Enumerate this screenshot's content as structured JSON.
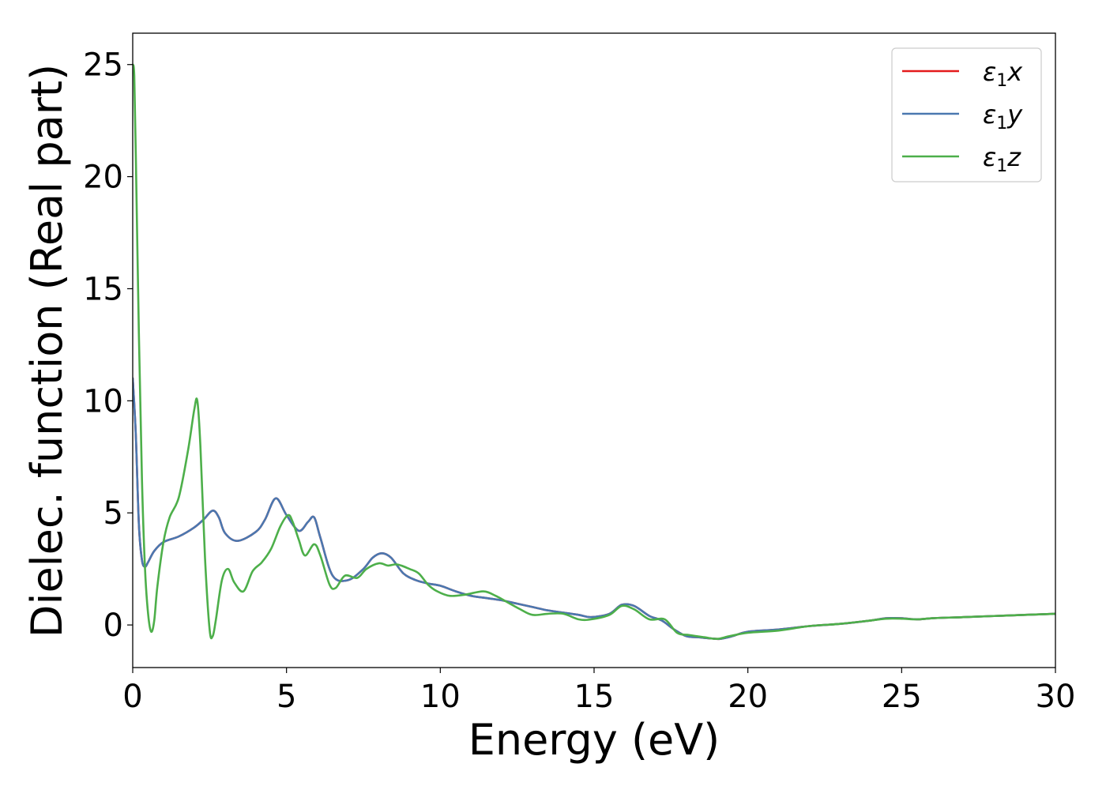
{
  "chart_data": {
    "type": "line",
    "title": "",
    "xlabel": "Energy (eV)",
    "ylabel": "Dielec. function (Real part)",
    "xlim": [
      0,
      30
    ],
    "ylim": [
      -1.9,
      26.4
    ],
    "xticks": [
      "0",
      "5",
      "10",
      "15",
      "20",
      "25",
      "30"
    ],
    "yticks": [
      "0",
      "5",
      "10",
      "15",
      "20",
      "25"
    ],
    "grid": false,
    "legend_position": "top-right",
    "series": [
      {
        "name": "ε1x",
        "name_base": "ε",
        "name_sub": "1",
        "name_suffix": "x",
        "color": "#e41a1c",
        "x": [
          0.0,
          0.1,
          0.2,
          0.3,
          0.4,
          0.5,
          0.7,
          1.0,
          1.5,
          2.0,
          2.3,
          2.6,
          2.8,
          3.0,
          3.4,
          4.0,
          4.3,
          4.65,
          5.0,
          5.4,
          5.7,
          5.9,
          6.1,
          6.5,
          7.0,
          7.5,
          7.8,
          8.1,
          8.4,
          8.8,
          9.2,
          9.6,
          10.0,
          10.5,
          11.0,
          11.5,
          12.0,
          12.5,
          13.0,
          13.5,
          14.0,
          14.5,
          14.9,
          15.5,
          15.9,
          16.3,
          16.8,
          17.2,
          17.6,
          18.0,
          18.4,
          18.8,
          19.1,
          19.5,
          20.0,
          21.0,
          22.0,
          23.0,
          24.0,
          24.5,
          25.0,
          25.5,
          26.0,
          27.0,
          28.0,
          29.0,
          30.0
        ],
        "y": [
          11.0,
          8.5,
          4.5,
          2.9,
          2.6,
          2.8,
          3.3,
          3.7,
          3.95,
          4.35,
          4.7,
          5.1,
          4.8,
          4.1,
          3.75,
          4.15,
          4.7,
          5.65,
          4.9,
          4.2,
          4.6,
          4.8,
          3.9,
          2.2,
          2.0,
          2.5,
          3.0,
          3.2,
          3.0,
          2.3,
          2.0,
          1.85,
          1.75,
          1.5,
          1.3,
          1.2,
          1.1,
          0.95,
          0.8,
          0.65,
          0.55,
          0.45,
          0.35,
          0.5,
          0.9,
          0.85,
          0.4,
          0.2,
          -0.2,
          -0.5,
          -0.55,
          -0.6,
          -0.62,
          -0.5,
          -0.3,
          -0.2,
          -0.05,
          0.05,
          0.2,
          0.3,
          0.3,
          0.25,
          0.3,
          0.35,
          0.4,
          0.45,
          0.5
        ]
      },
      {
        "name": "ε1y",
        "name_base": "ε",
        "name_sub": "1",
        "name_suffix": "y",
        "color": "#4a78b0",
        "x": [
          0.0,
          0.1,
          0.2,
          0.3,
          0.4,
          0.5,
          0.7,
          1.0,
          1.5,
          2.0,
          2.3,
          2.6,
          2.8,
          3.0,
          3.4,
          4.0,
          4.3,
          4.65,
          5.0,
          5.4,
          5.7,
          5.9,
          6.1,
          6.5,
          7.0,
          7.5,
          7.8,
          8.1,
          8.4,
          8.8,
          9.2,
          9.6,
          10.0,
          10.5,
          11.0,
          11.5,
          12.0,
          12.5,
          13.0,
          13.5,
          14.0,
          14.5,
          14.9,
          15.5,
          15.9,
          16.3,
          16.8,
          17.2,
          17.6,
          18.0,
          18.4,
          18.8,
          19.1,
          19.5,
          20.0,
          21.0,
          22.0,
          23.0,
          24.0,
          24.5,
          25.0,
          25.5,
          26.0,
          27.0,
          28.0,
          29.0,
          30.0
        ],
        "y": [
          11.0,
          8.5,
          4.5,
          2.9,
          2.6,
          2.8,
          3.3,
          3.7,
          3.95,
          4.35,
          4.7,
          5.1,
          4.8,
          4.1,
          3.75,
          4.15,
          4.7,
          5.65,
          4.9,
          4.2,
          4.6,
          4.8,
          3.9,
          2.2,
          2.0,
          2.5,
          3.0,
          3.2,
          3.0,
          2.3,
          2.0,
          1.85,
          1.75,
          1.5,
          1.3,
          1.2,
          1.1,
          0.95,
          0.8,
          0.65,
          0.55,
          0.45,
          0.35,
          0.5,
          0.9,
          0.85,
          0.4,
          0.2,
          -0.2,
          -0.5,
          -0.55,
          -0.6,
          -0.62,
          -0.5,
          -0.3,
          -0.2,
          -0.05,
          0.05,
          0.2,
          0.3,
          0.3,
          0.25,
          0.3,
          0.35,
          0.4,
          0.45,
          0.5
        ]
      },
      {
        "name": "ε1z",
        "name_base": "ε",
        "name_sub": "1",
        "name_suffix": "z",
        "color": "#4daf4a",
        "x": [
          0.0,
          0.05,
          0.1,
          0.2,
          0.3,
          0.4,
          0.5,
          0.6,
          0.7,
          0.8,
          1.0,
          1.2,
          1.5,
          1.8,
          2.0,
          2.1,
          2.2,
          2.35,
          2.5,
          2.6,
          2.7,
          2.9,
          3.1,
          3.3,
          3.6,
          3.9,
          4.2,
          4.5,
          4.8,
          5.05,
          5.2,
          5.4,
          5.6,
          5.9,
          6.1,
          6.4,
          6.6,
          6.9,
          7.3,
          7.6,
          8.0,
          8.3,
          8.6,
          9.0,
          9.3,
          9.6,
          9.9,
          10.3,
          10.8,
          11.4,
          11.8,
          12.2,
          12.6,
          13.0,
          13.5,
          14.0,
          14.5,
          14.9,
          15.5,
          15.9,
          16.3,
          16.8,
          17.3,
          17.7,
          18.1,
          18.6,
          19.0,
          19.4,
          20.0,
          21.0,
          22.0,
          23.0,
          24.0,
          24.5,
          25.0,
          25.5,
          26.0,
          27.0,
          28.0,
          29.0,
          30.0
        ],
        "y": [
          25.0,
          24.5,
          21.0,
          13.0,
          6.5,
          2.5,
          0.5,
          -0.3,
          0.2,
          1.7,
          3.7,
          4.8,
          5.7,
          7.8,
          9.6,
          10.0,
          8.0,
          3.0,
          -0.2,
          -0.5,
          0.2,
          2.0,
          2.5,
          1.9,
          1.5,
          2.4,
          2.8,
          3.4,
          4.4,
          4.9,
          4.6,
          3.8,
          3.1,
          3.6,
          3.1,
          1.8,
          1.65,
          2.2,
          2.1,
          2.5,
          2.75,
          2.65,
          2.7,
          2.5,
          2.3,
          1.8,
          1.5,
          1.3,
          1.35,
          1.5,
          1.3,
          1.0,
          0.7,
          0.45,
          0.5,
          0.5,
          0.25,
          0.25,
          0.45,
          0.85,
          0.7,
          0.25,
          0.25,
          -0.35,
          -0.45,
          -0.55,
          -0.62,
          -0.5,
          -0.35,
          -0.25,
          -0.05,
          0.05,
          0.2,
          0.28,
          0.28,
          0.25,
          0.3,
          0.35,
          0.4,
          0.45,
          0.5
        ]
      }
    ]
  }
}
